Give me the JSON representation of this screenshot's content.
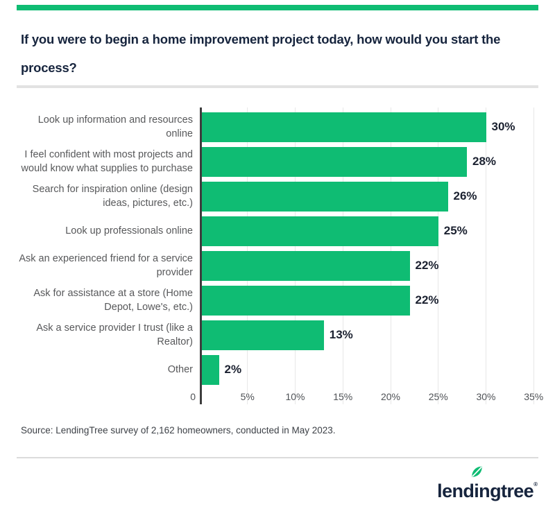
{
  "header": {
    "title": "If you were to begin a home improvement project today, how would you start the\nprocess?"
  },
  "accent_colors": {
    "green": "#0FBC73",
    "navy": "#16243D"
  },
  "chart_data": {
    "type": "bar",
    "orientation": "horizontal",
    "title": "If you were to begin a home improvement project today, how would you start the process?",
    "categories": [
      "Look up information and resources online",
      "I feel confident with most projects and would know what supplies to purchase",
      "Search for inspiration online (design ideas, pictures, etc.)",
      "Look up professionals online",
      "Ask an experienced friend for a service provider",
      "Ask for assistance at a store (Home Depot, Lowe's, etc.)",
      "Ask a service provider I trust (like a Realtor)",
      "Other"
    ],
    "display_labels": [
      "Look up information and resources\nonline",
      "I feel confident with most projects and\nwould know what supplies to purchase",
      "Search for inspiration online (design\nideas, pictures, etc.)",
      "Look up professionals online",
      "Ask an experienced friend for a service\nprovider",
      "Ask for assistance at a store (Home\nDepot, Lowe's, etc.)",
      "Ask a service provider I trust (like a\nRealtor)",
      "Other"
    ],
    "values": [
      30,
      28,
      26,
      25,
      22,
      22,
      13,
      2
    ],
    "value_labels": [
      "30%",
      "28%",
      "26%",
      "25%",
      "22%",
      "22%",
      "13%",
      "2%"
    ],
    "xlabel": "",
    "ylabel": "",
    "xlim": [
      0,
      35
    ],
    "x_ticks": [
      {
        "value": 0,
        "label": "0"
      },
      {
        "value": 5,
        "label": "5%"
      },
      {
        "value": 10,
        "label": "10%"
      },
      {
        "value": 15,
        "label": "15%"
      },
      {
        "value": 20,
        "label": "20%"
      },
      {
        "value": 25,
        "label": "25%"
      },
      {
        "value": 30,
        "label": "30%"
      },
      {
        "value": 35,
        "label": "35%"
      }
    ],
    "grid": "vertical-only",
    "legend": "none",
    "bar_color": "#0FBC73"
  },
  "footer": {
    "source": "Source: LendingTree survey of 2,162 homeowners, conducted in May 2023.",
    "logo_text": "lendingtree",
    "logo_registered": "®"
  }
}
